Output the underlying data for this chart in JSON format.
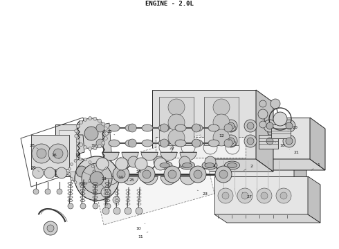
{
  "caption": "ENGINE - 2.0L",
  "caption_fontsize": 6.5,
  "caption_fontweight": "bold",
  "background_color": "#ffffff",
  "fig_width": 4.9,
  "fig_height": 3.6,
  "dpi": 100,
  "line_color": "#222222",
  "fill_light": "#e8e8e8",
  "fill_mid": "#d0d0d0",
  "fill_dark": "#b0b0b0"
}
